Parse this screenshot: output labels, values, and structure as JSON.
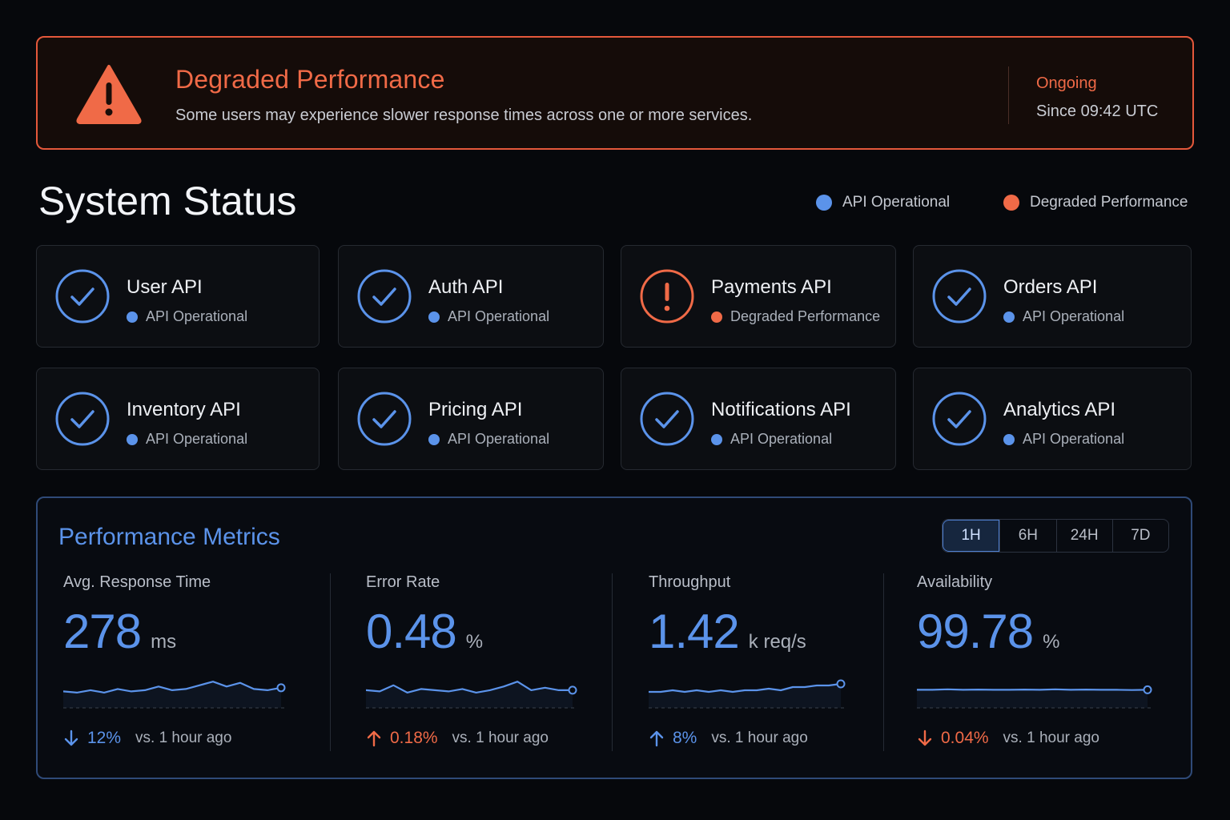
{
  "colors": {
    "operational": "#5b93ea",
    "degraded": "#f06a47",
    "background": "#06080c"
  },
  "banner": {
    "icon": "warning-triangle-icon",
    "title": "Degraded Performance",
    "message": "Some users may experience slower response times across one or more services.",
    "state": "Ongoing",
    "since": "Since 09:42 UTC"
  },
  "header": {
    "title": "System Status",
    "legend": {
      "operational": "API Operational",
      "degraded": "Degraded Performance"
    }
  },
  "services": [
    {
      "name": "User API",
      "status": "API Operational",
      "state": "operational",
      "icon": "check-circle-icon"
    },
    {
      "name": "Auth API",
      "status": "API Operational",
      "state": "operational",
      "icon": "check-circle-icon"
    },
    {
      "name": "Payments API",
      "status": "Degraded Performance",
      "state": "degraded",
      "icon": "alert-circle-icon"
    },
    {
      "name": "Orders API",
      "status": "API Operational",
      "state": "operational",
      "icon": "check-circle-icon"
    },
    {
      "name": "Inventory API",
      "status": "API Operational",
      "state": "operational",
      "icon": "check-circle-icon"
    },
    {
      "name": "Pricing API",
      "status": "API Operational",
      "state": "operational",
      "icon": "check-circle-icon"
    },
    {
      "name": "Notifications API",
      "status": "API Operational",
      "state": "operational",
      "icon": "check-circle-icon"
    },
    {
      "name": "Analytics API",
      "status": "API Operational",
      "state": "operational",
      "icon": "check-circle-icon"
    }
  ],
  "metrics": {
    "title": "Performance Metrics",
    "ranges": [
      "1H",
      "6H",
      "24H",
      "7D"
    ],
    "active_range": "1H",
    "items": [
      {
        "label": "Avg. Response Time",
        "value": "278",
        "unit": "ms",
        "delta": "12%",
        "direction": "down",
        "sentiment": "good",
        "compare": "vs. 1 hour ago",
        "trend": [
          4,
          3,
          5,
          3,
          6,
          4,
          5,
          8,
          5,
          6,
          9,
          12,
          8,
          11,
          6,
          5,
          7
        ]
      },
      {
        "label": "Error Rate",
        "value": "0.48",
        "unit": "%",
        "delta": "0.18%",
        "direction": "up",
        "sentiment": "bad",
        "compare": "vs. 1 hour ago",
        "trend": [
          5,
          4,
          9,
          3,
          6,
          5,
          4,
          6,
          3,
          5,
          8,
          12,
          5,
          7,
          5,
          5
        ]
      },
      {
        "label": "Throughput",
        "value": "1.42",
        "unit": "k req/s",
        "delta": "8%",
        "direction": "up",
        "sentiment": "good",
        "compare": "vs. 1 hour ago",
        "trend": [
          5,
          5,
          6,
          5,
          6,
          5,
          6,
          5,
          6,
          6,
          7,
          6,
          8,
          8,
          9,
          9,
          10
        ]
      },
      {
        "label": "Availability",
        "value": "99.78",
        "unit": "%",
        "delta": "0.04%",
        "direction": "down",
        "sentiment": "bad",
        "compare": "vs. 1 hour ago",
        "trend": [
          6,
          6,
          6.2,
          6,
          6.1,
          6,
          6,
          6.1,
          6,
          6.2,
          6,
          6.1,
          6,
          6,
          5.9,
          6
        ]
      }
    ]
  }
}
